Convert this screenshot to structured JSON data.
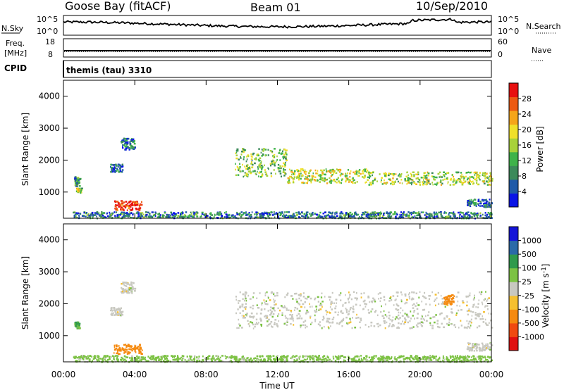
{
  "header": {
    "station": "Goose Bay (fitACF)",
    "beam": "Beam 01",
    "date": "10/Sep/2010"
  },
  "top_panels": {
    "nsky_label": "N.Sky",
    "nsearch_label": "N.Search",
    "noise_ticks_left": [
      "10^5",
      "10^0"
    ],
    "noise_ticks_right": [
      "10^5",
      "10^0"
    ],
    "freq_label_line1": "Freq.",
    "freq_label_line2": "[MHz]",
    "freq_ticks": [
      "18",
      "8"
    ],
    "nave_label": "Nave",
    "nave_ticks": [
      "60",
      "0"
    ],
    "cpid_label": "CPID",
    "cpid_text": "themis (tau) 3310"
  },
  "x_axis": {
    "label": "Time UT",
    "ticks": [
      "00:00",
      "04:00",
      "08:00",
      "12:00",
      "16:00",
      "20:00",
      "00:00"
    ]
  },
  "colors": {
    "power": [
      "#0a14e6",
      "#1f5aa8",
      "#3c8a5a",
      "#3fb34a",
      "#a8d23a",
      "#f0e02a",
      "#f5a51a",
      "#ec5a12",
      "#e81010"
    ],
    "velocity": [
      "#e01010",
      "#f04a10",
      "#f58a10",
      "#f5c030",
      "#c8c8c0",
      "#7cc243",
      "#2f9a4c",
      "#2a6aa8",
      "#1414d8"
    ]
  },
  "chart_data": [
    {
      "type": "heatmap",
      "title": "Goose Bay (fitACF)  Beam 01  10/Sep/2010",
      "xlabel": "Time UT",
      "ylabel": "Slant Range [km]",
      "xlim": [
        0,
        24
      ],
      "ylim": [
        180,
        4500
      ],
      "x_ticks": [
        "00:00",
        "04:00",
        "08:00",
        "12:00",
        "16:00",
        "20:00",
        "00:00"
      ],
      "y_ticks": [
        1000,
        2000,
        3000,
        4000
      ],
      "colorbar": {
        "label": "Power [dB]",
        "ticks": [
          4,
          8,
          12,
          16,
          20,
          24,
          28
        ],
        "range": [
          0,
          32
        ]
      },
      "echo_regions": [
        {
          "t": [
            0.6,
            0.9
          ],
          "range": [
            1200,
            1500
          ],
          "value": 10
        },
        {
          "t": [
            0.7,
            1.0
          ],
          "range": [
            1000,
            1150
          ],
          "value": 16
        },
        {
          "t": [
            2.8,
            4.4
          ],
          "range": [
            450,
            750
          ],
          "value": 30
        },
        {
          "t": [
            2.6,
            3.3
          ],
          "range": [
            1650,
            1900
          ],
          "value": 6
        },
        {
          "t": [
            3.2,
            4.0
          ],
          "range": [
            2350,
            2700
          ],
          "value": 8
        },
        {
          "t": [
            0.5,
            24.0
          ],
          "range": [
            200,
            400
          ],
          "value": 8
        },
        {
          "t": [
            9.6,
            12.5
          ],
          "range": [
            1500,
            2400
          ],
          "value": 14
        },
        {
          "t": [
            12.5,
            17.0
          ],
          "range": [
            1300,
            1750
          ],
          "value": 18
        },
        {
          "t": [
            17.0,
            24.0
          ],
          "range": [
            1250,
            1650
          ],
          "value": 16
        },
        {
          "t": [
            22.6,
            24.0
          ],
          "range": [
            550,
            800
          ],
          "value": 6
        }
      ]
    },
    {
      "type": "heatmap",
      "xlabel": "Time UT",
      "ylabel": "Slant Range [km]",
      "xlim": [
        0,
        24
      ],
      "ylim": [
        180,
        4500
      ],
      "x_ticks": [
        "00:00",
        "04:00",
        "08:00",
        "12:00",
        "16:00",
        "20:00",
        "00:00"
      ],
      "y_ticks": [
        1000,
        2000,
        3000,
        4000
      ],
      "colorbar": {
        "label": "Velocity [m s^-1]",
        "ticks": [
          "1000",
          "500",
          "100",
          "25",
          "-25",
          "-100",
          "-500",
          "-1000"
        ]
      },
      "echo_regions": [
        {
          "t": [
            0.6,
            0.9
          ],
          "range": [
            1250,
            1450
          ],
          "value": 100
        },
        {
          "t": [
            2.8,
            4.4
          ],
          "range": [
            450,
            750
          ],
          "value": -300
        },
        {
          "t": [
            2.6,
            3.3
          ],
          "range": [
            1650,
            1900
          ],
          "value": 0
        },
        {
          "t": [
            3.2,
            4.0
          ],
          "range": [
            2350,
            2700
          ],
          "value": 0
        },
        {
          "t": [
            0.5,
            24.0
          ],
          "range": [
            200,
            400
          ],
          "value": 50
        },
        {
          "t": [
            9.6,
            24.0
          ],
          "range": [
            1250,
            2400
          ],
          "value": 0
        },
        {
          "t": [
            21.3,
            21.9
          ],
          "range": [
            2000,
            2300
          ],
          "value": -200
        },
        {
          "t": [
            22.6,
            24.0
          ],
          "range": [
            550,
            800
          ],
          "value": 0
        }
      ]
    }
  ]
}
